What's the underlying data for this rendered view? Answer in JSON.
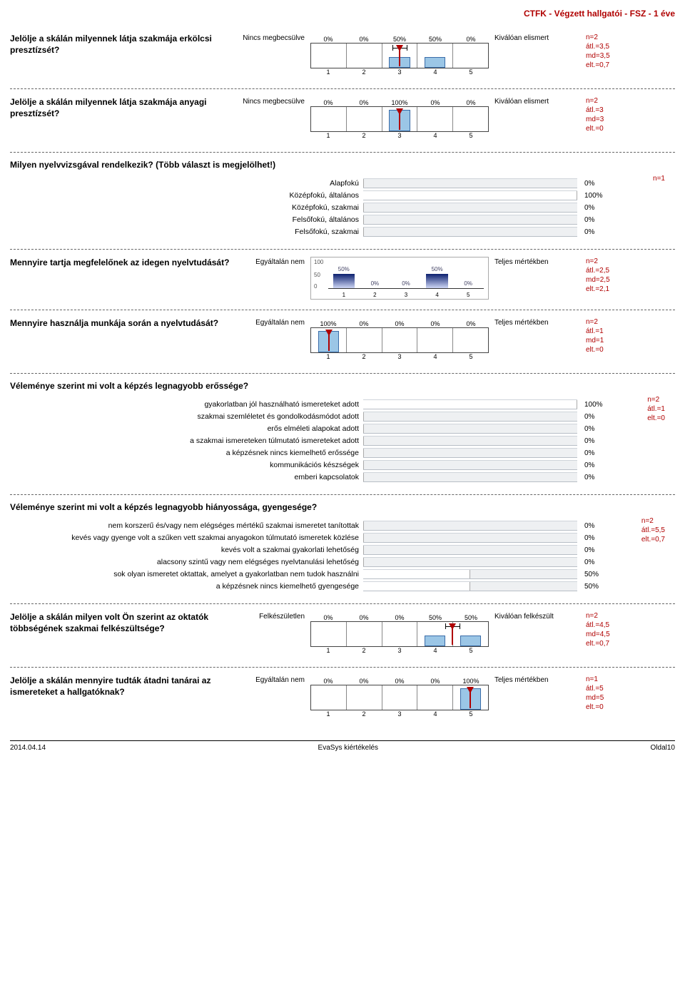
{
  "page_title": "CTFK - Végzett hallgatói - FSZ - 1 éve",
  "footer": {
    "date": "2014.04.14",
    "center": "EvaSys kiértékelés",
    "right": "Oldal10"
  },
  "colors": {
    "accent": "#b00000",
    "bar_fill": "#9bc6e6",
    "bar_border": "#3a6ca8",
    "track_bg": "#eef0f2",
    "grad_top": "#0b1f6e",
    "grad_bottom": "#cfd7f6"
  },
  "q1": {
    "question": "Jelölje a skálán milyennek látja szakmája erkölcsi presztízsét?",
    "left_label": "Nincs megbecsülve",
    "right_label": "Kiválóan elismert",
    "percents": [
      "0%",
      "0%",
      "50%",
      "50%",
      "0%"
    ],
    "values": [
      0,
      0,
      50,
      50,
      0
    ],
    "ticks": [
      "1",
      "2",
      "3",
      "4",
      "5"
    ],
    "marker_pos_pct": 50,
    "whisker": {
      "left_pct": 46,
      "right_pct": 54
    },
    "stats": [
      "n=2",
      "átl.=3,5",
      "md=3,5",
      "elt.=0,7"
    ]
  },
  "q2": {
    "question": "Jelölje a skálán milyennek látja szakmája anyagi presztízsét?",
    "left_label": "Nincs megbecsülve",
    "right_label": "Kiválóan elismert",
    "percents": [
      "0%",
      "0%",
      "100%",
      "0%",
      "0%"
    ],
    "values": [
      0,
      0,
      100,
      0,
      0
    ],
    "ticks": [
      "1",
      "2",
      "3",
      "4",
      "5"
    ],
    "marker_pos_pct": 50,
    "whisker": {
      "left_pct": 50,
      "right_pct": 50
    },
    "stats": [
      "n=2",
      "átl.=3",
      "md=3",
      "elt.=0"
    ]
  },
  "q3": {
    "question": "Milyen nyelvvizsgával rendelkezik? (Több választ is megjelölhet!)",
    "stats": [
      "n=1"
    ],
    "items": [
      {
        "label": "Alapfokú",
        "pct": 0,
        "txt": "0%"
      },
      {
        "label": "Középfokú, általános",
        "pct": 100,
        "txt": "100%"
      },
      {
        "label": "Középfokú, szakmai",
        "pct": 0,
        "txt": "0%"
      },
      {
        "label": "Felsőfokú, általános",
        "pct": 0,
        "txt": "0%"
      },
      {
        "label": "Felsőfokú, szakmai",
        "pct": 0,
        "txt": "0%"
      }
    ]
  },
  "q4": {
    "question": "Mennyire tartja megfelelőnek az idegen nyelvtudását?",
    "left_label": "Egyáltalán nem",
    "right_label": "Teljes mértékben",
    "y_labels": [
      "100",
      "50",
      "0"
    ],
    "bars": [
      {
        "pct": 50,
        "txt": "50%"
      },
      {
        "pct": 0,
        "txt": "0%"
      },
      {
        "pct": 0,
        "txt": "0%"
      },
      {
        "pct": 50,
        "txt": "50%"
      },
      {
        "pct": 0,
        "txt": "0%"
      }
    ],
    "ticks": [
      "1",
      "2",
      "3",
      "4",
      "5"
    ],
    "stats": [
      "n=2",
      "átl.=2,5",
      "md=2,5",
      "elt.=2,1"
    ]
  },
  "q5": {
    "question": "Mennyire használja munkája során a nyelvtudását?",
    "left_label": "Egyáltalán nem",
    "right_label": "Teljes mértékben",
    "percents": [
      "100%",
      "0%",
      "0%",
      "0%",
      "0%"
    ],
    "values": [
      100,
      0,
      0,
      0,
      0
    ],
    "ticks": [
      "1",
      "2",
      "3",
      "4",
      "5"
    ],
    "marker_pos_pct": 10,
    "whisker": {
      "left_pct": 10,
      "right_pct": 10
    },
    "stats": [
      "n=2",
      "átl.=1",
      "md=1",
      "elt.=0"
    ]
  },
  "q6": {
    "question": "Véleménye szerint mi volt a képzés legnagyobb erőssége?",
    "stats": [
      "n=2",
      "átl.=1",
      "elt.=0"
    ],
    "items": [
      {
        "label": "gyakorlatban jól használható ismereteket adott",
        "pct": 100,
        "txt": "100%"
      },
      {
        "label": "szakmai szemléletet és gondolkodásmódot adott",
        "pct": 0,
        "txt": "0%"
      },
      {
        "label": "erős elméleti alapokat adott",
        "pct": 0,
        "txt": "0%"
      },
      {
        "label": "a szakmai ismereteken túlmutató ismereteket adott",
        "pct": 0,
        "txt": "0%"
      },
      {
        "label": "a képzésnek nincs kiemelhető erőssége",
        "pct": 0,
        "txt": "0%"
      },
      {
        "label": "kommunikációs készségek",
        "pct": 0,
        "txt": "0%"
      },
      {
        "label": "emberi kapcsolatok",
        "pct": 0,
        "txt": "0%"
      }
    ]
  },
  "q7": {
    "question": "Véleménye szerint mi volt a képzés legnagyobb hiányossága, gyengesége?",
    "stats": [
      "n=2",
      "átl.=5,5",
      "elt.=0,7"
    ],
    "items": [
      {
        "label": "nem korszerű és/vagy nem elégséges mértékű szakmai ismeretet tanítottak",
        "pct": 0,
        "txt": "0%"
      },
      {
        "label": "kevés vagy gyenge volt a szűken vett szakmai anyagokon túlmutató ismeretek közlése",
        "pct": 0,
        "txt": "0%"
      },
      {
        "label": "kevés volt a szakmai gyakorlati lehetőség",
        "pct": 0,
        "txt": "0%"
      },
      {
        "label": "alacsony szintű vagy nem elégséges nyelvtanulási lehetőség",
        "pct": 0,
        "txt": "0%"
      },
      {
        "label": "sok olyan ismeretet oktattak, amelyet a gyakorlatban nem tudok használni",
        "pct": 50,
        "txt": "50%"
      },
      {
        "label": "a képzésnek nincs kiemelhető gyengesége",
        "pct": 50,
        "txt": "50%"
      }
    ]
  },
  "q8": {
    "question": "Jelölje a skálán milyen volt Ön szerint az oktatók többségének szakmai felkészültsége?",
    "left_label": "Felkészületlen",
    "right_label": "Kiválóan felkészült",
    "percents": [
      "0%",
      "0%",
      "0%",
      "50%",
      "50%"
    ],
    "values": [
      0,
      0,
      0,
      50,
      50
    ],
    "ticks": [
      "1",
      "2",
      "3",
      "4",
      "5"
    ],
    "marker_pos_pct": 80,
    "whisker": {
      "left_pct": 76,
      "right_pct": 84
    },
    "stats": [
      "n=2",
      "átl.=4,5",
      "md=4,5",
      "elt.=0,7"
    ]
  },
  "q9": {
    "question": "Jelölje a skálán mennyire tudták átadni tanárai az ismereteket a hallgatóknak?",
    "left_label": "Egyáltalán nem",
    "right_label": "Teljes mértékben",
    "percents": [
      "0%",
      "0%",
      "0%",
      "0%",
      "100%"
    ],
    "values": [
      0,
      0,
      0,
      0,
      100
    ],
    "ticks": [
      "1",
      "2",
      "3",
      "4",
      "5"
    ],
    "marker_pos_pct": 90,
    "whisker": {
      "left_pct": 90,
      "right_pct": 90
    },
    "stats": [
      "n=1",
      "átl.=5",
      "md=5",
      "elt.=0"
    ]
  }
}
